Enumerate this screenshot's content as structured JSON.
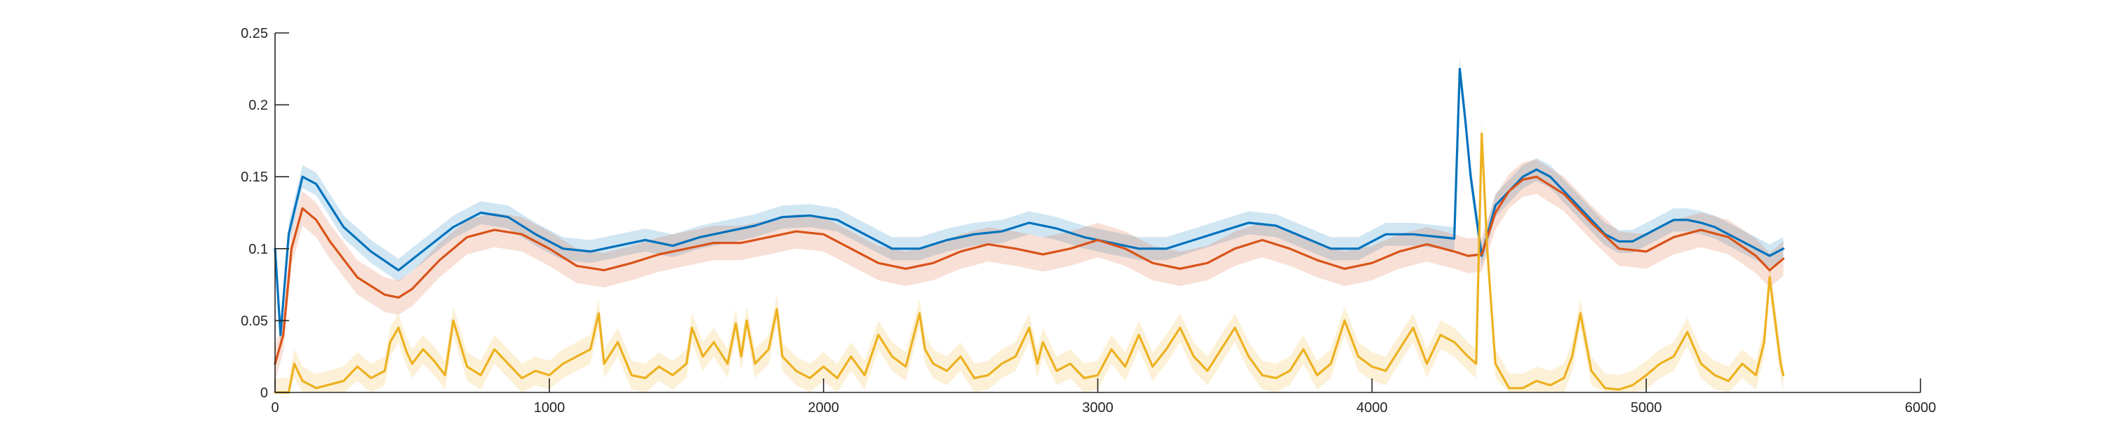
{
  "chart_data": {
    "type": "line",
    "title": "",
    "xlabel": "",
    "ylabel": "",
    "xlim": [
      0,
      6000
    ],
    "ylim": [
      0,
      0.25
    ],
    "grid": false,
    "legend": "none",
    "xticks": [
      0,
      1000,
      2000,
      3000,
      4000,
      5000,
      6000
    ],
    "xtick_labels": [
      "0",
      "1000",
      "2000",
      "3000",
      "4000",
      "5000",
      "6000"
    ],
    "yticks": [
      0,
      0.05,
      0.1,
      0.15,
      0.2,
      0.25
    ],
    "ytick_labels": [
      "0",
      "0.05",
      "0.1",
      "0.15",
      "0.2",
      "0.25"
    ],
    "series": [
      {
        "color": "#0072BD",
        "band_color": "#0072BD",
        "band_halfwidth": 0.008,
        "x": [
          0,
          20,
          50,
          100,
          150,
          250,
          350,
          450,
          550,
          650,
          750,
          850,
          950,
          1050,
          1150,
          1250,
          1350,
          1450,
          1550,
          1650,
          1750,
          1850,
          1950,
          2050,
          2150,
          2250,
          2350,
          2450,
          2550,
          2650,
          2750,
          2850,
          2950,
          3050,
          3150,
          3250,
          3350,
          3450,
          3550,
          3650,
          3750,
          3850,
          3950,
          4050,
          4150,
          4250,
          4300,
          4320,
          4340,
          4360,
          4400,
          4450,
          4500,
          4550,
          4600,
          4650,
          4700,
          4750,
          4800,
          4850,
          4900,
          4950,
          5000,
          5050,
          5100,
          5150,
          5200,
          5250,
          5300,
          5350,
          5400,
          5450,
          5500
        ],
        "values": [
          0.1,
          0.04,
          0.11,
          0.15,
          0.145,
          0.115,
          0.098,
          0.085,
          0.1,
          0.115,
          0.125,
          0.122,
          0.11,
          0.1,
          0.098,
          0.102,
          0.106,
          0.102,
          0.108,
          0.112,
          0.116,
          0.122,
          0.123,
          0.12,
          0.11,
          0.1,
          0.1,
          0.106,
          0.11,
          0.112,
          0.118,
          0.114,
          0.108,
          0.104,
          0.1,
          0.1,
          0.106,
          0.112,
          0.118,
          0.116,
          0.108,
          0.1,
          0.1,
          0.11,
          0.11,
          0.108,
          0.107,
          0.225,
          0.19,
          0.15,
          0.095,
          0.13,
          0.14,
          0.15,
          0.155,
          0.15,
          0.14,
          0.13,
          0.12,
          0.11,
          0.105,
          0.105,
          0.11,
          0.115,
          0.12,
          0.12,
          0.118,
          0.115,
          0.11,
          0.105,
          0.1,
          0.095,
          0.1
        ]
      },
      {
        "color": "#D95319",
        "band_color": "#D95319",
        "band_halfwidth": 0.012,
        "x": [
          0,
          30,
          60,
          100,
          150,
          200,
          300,
          400,
          450,
          500,
          600,
          700,
          800,
          900,
          1000,
          1100,
          1200,
          1300,
          1400,
          1500,
          1600,
          1700,
          1800,
          1900,
          2000,
          2100,
          2200,
          2300,
          2400,
          2500,
          2600,
          2700,
          2800,
          2900,
          3000,
          3100,
          3200,
          3300,
          3400,
          3500,
          3600,
          3700,
          3800,
          3900,
          4000,
          4100,
          4200,
          4300,
          4350,
          4400,
          4450,
          4500,
          4550,
          4600,
          4700,
          4800,
          4900,
          5000,
          5100,
          5200,
          5300,
          5400,
          5450,
          5500
        ],
        "values": [
          0.02,
          0.04,
          0.1,
          0.128,
          0.12,
          0.105,
          0.08,
          0.068,
          0.066,
          0.072,
          0.092,
          0.108,
          0.113,
          0.11,
          0.1,
          0.088,
          0.085,
          0.09,
          0.096,
          0.1,
          0.104,
          0.104,
          0.108,
          0.112,
          0.11,
          0.1,
          0.09,
          0.086,
          0.09,
          0.098,
          0.103,
          0.1,
          0.096,
          0.1,
          0.106,
          0.1,
          0.09,
          0.086,
          0.09,
          0.1,
          0.106,
          0.1,
          0.092,
          0.086,
          0.09,
          0.098,
          0.103,
          0.098,
          0.095,
          0.096,
          0.125,
          0.14,
          0.148,
          0.15,
          0.138,
          0.118,
          0.1,
          0.098,
          0.108,
          0.113,
          0.108,
          0.095,
          0.085,
          0.093
        ]
      },
      {
        "color": "#EDB120",
        "band_color": "#EDB120",
        "band_halfwidth": 0.01,
        "x": [
          0,
          50,
          70,
          100,
          150,
          250,
          300,
          350,
          400,
          420,
          450,
          480,
          500,
          540,
          580,
          620,
          650,
          700,
          750,
          800,
          850,
          900,
          950,
          1000,
          1050,
          1100,
          1150,
          1180,
          1200,
          1250,
          1300,
          1350,
          1400,
          1450,
          1500,
          1520,
          1560,
          1600,
          1650,
          1680,
          1700,
          1720,
          1750,
          1800,
          1830,
          1850,
          1900,
          1950,
          2000,
          2050,
          2100,
          2150,
          2200,
          2250,
          2300,
          2350,
          2370,
          2400,
          2450,
          2500,
          2550,
          2600,
          2650,
          2700,
          2750,
          2780,
          2800,
          2850,
          2900,
          2950,
          3000,
          3050,
          3100,
          3150,
          3200,
          3250,
          3300,
          3350,
          3400,
          3450,
          3500,
          3550,
          3600,
          3650,
          3700,
          3750,
          3800,
          3850,
          3900,
          3950,
          4000,
          4050,
          4100,
          4150,
          4200,
          4250,
          4300,
          4350,
          4380,
          4400,
          4420,
          4450,
          4500,
          4550,
          4600,
          4650,
          4700,
          4730,
          4760,
          4800,
          4850,
          4900,
          4950,
          5000,
          5050,
          5100,
          5150,
          5200,
          5250,
          5300,
          5350,
          5400,
          5430,
          5450,
          5470,
          5490,
          5500
        ],
        "values": [
          0,
          0,
          0.02,
          0.008,
          0.003,
          0.008,
          0.018,
          0.01,
          0.015,
          0.035,
          0.045,
          0.028,
          0.02,
          0.03,
          0.022,
          0.012,
          0.05,
          0.018,
          0.012,
          0.03,
          0.02,
          0.01,
          0.015,
          0.012,
          0.02,
          0.025,
          0.03,
          0.055,
          0.02,
          0.035,
          0.012,
          0.01,
          0.018,
          0.012,
          0.02,
          0.045,
          0.025,
          0.035,
          0.02,
          0.048,
          0.025,
          0.05,
          0.02,
          0.03,
          0.058,
          0.025,
          0.015,
          0.01,
          0.018,
          0.01,
          0.025,
          0.012,
          0.04,
          0.025,
          0.018,
          0.055,
          0.03,
          0.02,
          0.015,
          0.025,
          0.01,
          0.012,
          0.02,
          0.025,
          0.045,
          0.02,
          0.035,
          0.015,
          0.02,
          0.01,
          0.012,
          0.03,
          0.018,
          0.04,
          0.018,
          0.03,
          0.045,
          0.025,
          0.015,
          0.03,
          0.045,
          0.025,
          0.012,
          0.01,
          0.015,
          0.03,
          0.012,
          0.02,
          0.05,
          0.025,
          0.018,
          0.015,
          0.03,
          0.045,
          0.02,
          0.04,
          0.035,
          0.025,
          0.02,
          0.18,
          0.1,
          0.02,
          0.003,
          0.003,
          0.008,
          0.005,
          0.01,
          0.025,
          0.055,
          0.015,
          0.003,
          0.002,
          0.005,
          0.012,
          0.02,
          0.025,
          0.042,
          0.02,
          0.012,
          0.008,
          0.02,
          0.012,
          0.035,
          0.08,
          0.05,
          0.02,
          0.012
        ]
      }
    ]
  }
}
